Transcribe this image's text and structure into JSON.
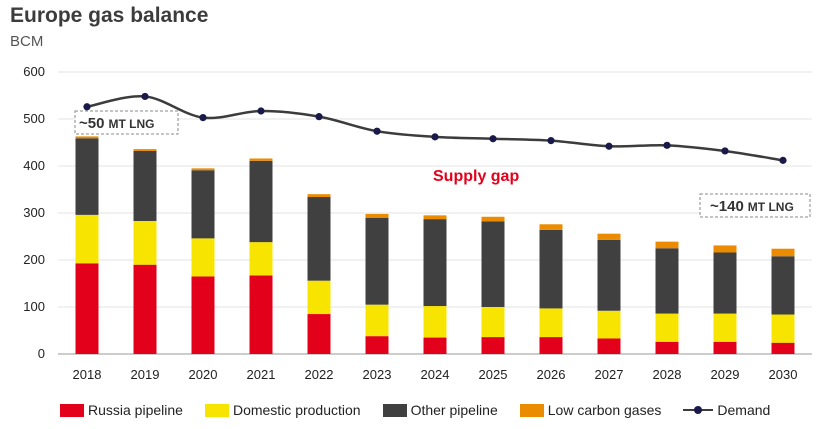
{
  "chart_data": {
    "type": "bar",
    "stacked": true,
    "title": "Europe gas balance",
    "subtitle": "BCM",
    "categories": [
      "2018",
      "2019",
      "2020",
      "2021",
      "2022",
      "2023",
      "2024",
      "2025",
      "2026",
      "2027",
      "2028",
      "2029",
      "2030"
    ],
    "ylim": [
      0,
      600
    ],
    "yticks": [
      0,
      100,
      200,
      300,
      400,
      500,
      600
    ],
    "grid": true,
    "legend_position": "bottom",
    "series": [
      {
        "name": "Russia pipeline",
        "color": "#e3001b",
        "values": [
          193,
          190,
          165,
          167,
          85,
          38,
          35,
          36,
          36,
          33,
          26,
          26,
          24
        ]
      },
      {
        "name": "Domestic production",
        "color": "#f7e400",
        "values": [
          103,
          93,
          81,
          71,
          71,
          67,
          67,
          64,
          61,
          59,
          60,
          60,
          60
        ]
      },
      {
        "name": "Other pipeline",
        "color": "#404040",
        "values": [
          163,
          149,
          145,
          173,
          178,
          185,
          185,
          182,
          167,
          151,
          139,
          130,
          124
        ]
      },
      {
        "name": "Low carbon gases",
        "color": "#eb8c00",
        "values": [
          4,
          4,
          4,
          5,
          6,
          8,
          8,
          10,
          12,
          13,
          14,
          15,
          16
        ]
      }
    ],
    "line_series": {
      "name": "Demand",
      "color": "#3c3c3c",
      "marker_color": "#1a1a4a",
      "values": [
        526,
        548,
        503,
        517,
        505,
        474,
        462,
        458,
        454,
        442,
        444,
        432,
        412
      ]
    },
    "annotations": {
      "callout_left": {
        "main": "~50",
        "unit": "MT LNG"
      },
      "callout_right": {
        "main": "~140",
        "unit": "MT LNG"
      },
      "gap_label": "Supply gap"
    }
  }
}
